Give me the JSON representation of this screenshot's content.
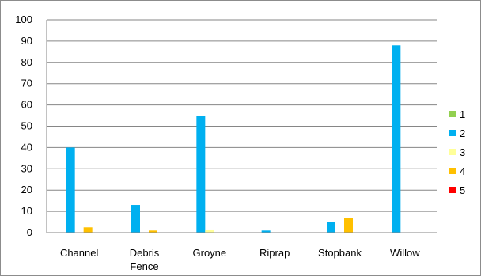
{
  "chart_data": {
    "type": "bar",
    "categories": [
      "Channel",
      "Debris Fence",
      "Groyne",
      "Riprap",
      "Stopbank",
      "Willow"
    ],
    "series": [
      {
        "name": "1",
        "color": "#92D050",
        "values": [
          0,
          0,
          0,
          0,
          0,
          0
        ]
      },
      {
        "name": "2",
        "color": "#00B0F0",
        "values": [
          40,
          13,
          55,
          1,
          5,
          88
        ]
      },
      {
        "name": "3",
        "color": "#FFFF99",
        "values": [
          0,
          0,
          1.5,
          0,
          0,
          0
        ]
      },
      {
        "name": "4",
        "color": "#FFC000",
        "values": [
          2.5,
          1,
          0,
          0,
          7,
          0
        ]
      },
      {
        "name": "5",
        "color": "#FF0000",
        "values": [
          0,
          0,
          0,
          0,
          0,
          0
        ]
      }
    ],
    "ylim": [
      0,
      100
    ],
    "yticks": [
      0,
      10,
      20,
      30,
      40,
      50,
      60,
      70,
      80,
      90,
      100
    ],
    "grid": true,
    "legend_position": "right",
    "title": "",
    "xlabel": "",
    "ylabel": ""
  }
}
